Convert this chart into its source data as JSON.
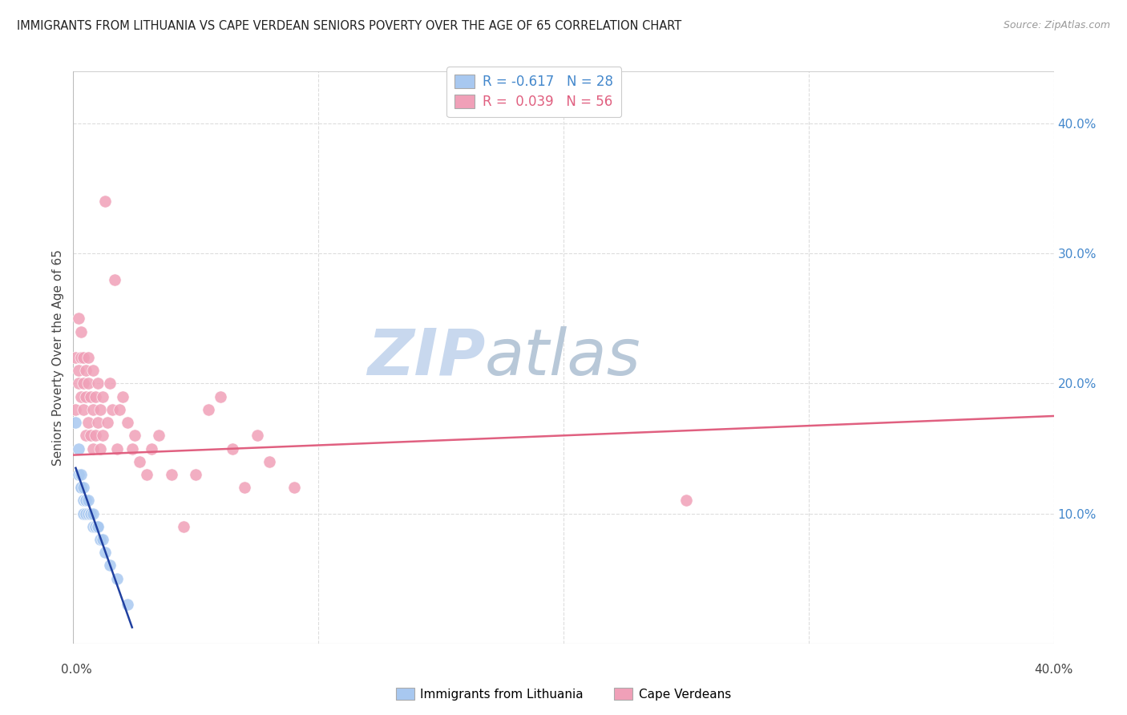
{
  "title": "IMMIGRANTS FROM LITHUANIA VS CAPE VERDEAN SENIORS POVERTY OVER THE AGE OF 65 CORRELATION CHART",
  "source": "Source: ZipAtlas.com",
  "ylabel": "Seniors Poverty Over the Age of 65",
  "right_yticks": [
    "40.0%",
    "30.0%",
    "20.0%",
    "10.0%"
  ],
  "right_ytick_vals": [
    0.4,
    0.3,
    0.2,
    0.1
  ],
  "xlim": [
    0.0,
    0.4
  ],
  "ylim": [
    0.0,
    0.44
  ],
  "legend_entry1": "R = -0.617   N = 28",
  "legend_entry2": "R =  0.039   N = 56",
  "legend_label1": "Immigrants from Lithuania",
  "legend_label2": "Cape Verdeans",
  "color_blue": "#A8C8F0",
  "color_pink": "#F0A0B8",
  "watermark_zip": "ZIP",
  "watermark_atlas": "atlas",
  "watermark_color_zip": "#C8D8EE",
  "watermark_color_atlas": "#B8C8D8",
  "grid_color": "#DDDDDD",
  "blue_trendline_color": "#2040A0",
  "pink_trendline_color": "#E06080",
  "lithuania_x": [
    0.001,
    0.002,
    0.002,
    0.003,
    0.003,
    0.003,
    0.004,
    0.004,
    0.004,
    0.005,
    0.005,
    0.005,
    0.006,
    0.006,
    0.007,
    0.007,
    0.008,
    0.008,
    0.009,
    0.009,
    0.01,
    0.01,
    0.011,
    0.012,
    0.013,
    0.015,
    0.018,
    0.022
  ],
  "lithuania_y": [
    0.17,
    0.13,
    0.15,
    0.12,
    0.12,
    0.13,
    0.11,
    0.12,
    0.1,
    0.11,
    0.1,
    0.11,
    0.1,
    0.11,
    0.1,
    0.1,
    0.09,
    0.1,
    0.09,
    0.09,
    0.09,
    0.09,
    0.08,
    0.08,
    0.07,
    0.06,
    0.05,
    0.03
  ],
  "capeverdean_x": [
    0.001,
    0.001,
    0.002,
    0.002,
    0.002,
    0.003,
    0.003,
    0.003,
    0.004,
    0.004,
    0.004,
    0.005,
    0.005,
    0.005,
    0.006,
    0.006,
    0.006,
    0.007,
    0.007,
    0.008,
    0.008,
    0.008,
    0.009,
    0.009,
    0.01,
    0.01,
    0.011,
    0.011,
    0.012,
    0.012,
    0.013,
    0.014,
    0.015,
    0.016,
    0.017,
    0.018,
    0.019,
    0.02,
    0.022,
    0.024,
    0.025,
    0.027,
    0.03,
    0.032,
    0.035,
    0.04,
    0.045,
    0.05,
    0.055,
    0.06,
    0.065,
    0.07,
    0.075,
    0.08,
    0.25,
    0.09
  ],
  "capeverdean_y": [
    0.22,
    0.18,
    0.25,
    0.2,
    0.21,
    0.24,
    0.22,
    0.19,
    0.22,
    0.2,
    0.18,
    0.21,
    0.19,
    0.16,
    0.22,
    0.2,
    0.17,
    0.19,
    0.16,
    0.21,
    0.18,
    0.15,
    0.19,
    0.16,
    0.2,
    0.17,
    0.18,
    0.15,
    0.19,
    0.16,
    0.34,
    0.17,
    0.2,
    0.18,
    0.28,
    0.15,
    0.18,
    0.19,
    0.17,
    0.15,
    0.16,
    0.14,
    0.13,
    0.15,
    0.16,
    0.13,
    0.09,
    0.13,
    0.18,
    0.19,
    0.15,
    0.12,
    0.16,
    0.14,
    0.11,
    0.12
  ],
  "pink_trend_x": [
    0.0,
    0.4
  ],
  "pink_trend_y": [
    0.145,
    0.175
  ],
  "blue_trend_x_start": 0.001,
  "blue_trend_x_end": 0.024
}
